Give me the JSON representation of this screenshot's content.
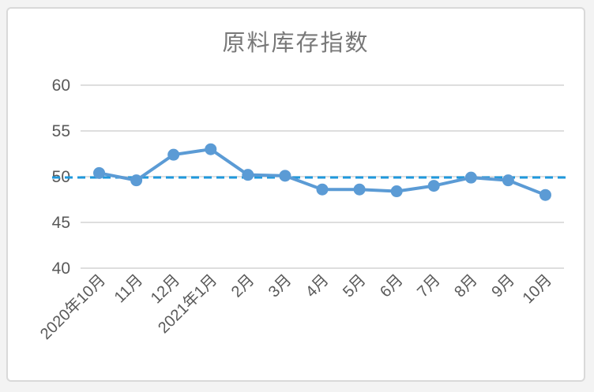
{
  "chart_data": {
    "type": "line",
    "title": "原料库存指数",
    "categories": [
      "2020年10月",
      "11月",
      "12月",
      "2021年1月",
      "2月",
      "3月",
      "4月",
      "5月",
      "6月",
      "7月",
      "8月",
      "9月",
      "10月"
    ],
    "series": [
      {
        "name": "原料库存指数",
        "values": [
          50.4,
          49.6,
          52.4,
          53.0,
          50.2,
          50.1,
          48.6,
          48.6,
          48.4,
          49.0,
          49.9,
          49.6,
          48.0
        ],
        "color": "#5b9bd5",
        "marker": "circle"
      }
    ],
    "reference_line": {
      "value": 50,
      "style": "dashed",
      "color": "#1f98dc"
    },
    "y_axis": {
      "min": 40,
      "max": 60,
      "step": 5,
      "ticks": [
        60,
        55,
        50,
        45,
        40
      ]
    },
    "x_tick_rotation": -45,
    "grid": true,
    "legend_position": "none",
    "colors": {
      "grid": "#d9d9d9",
      "tick_label": "#595959",
      "title": "#787878",
      "card_border": "#d9d9d9",
      "card_background": "#ffffff"
    }
  }
}
